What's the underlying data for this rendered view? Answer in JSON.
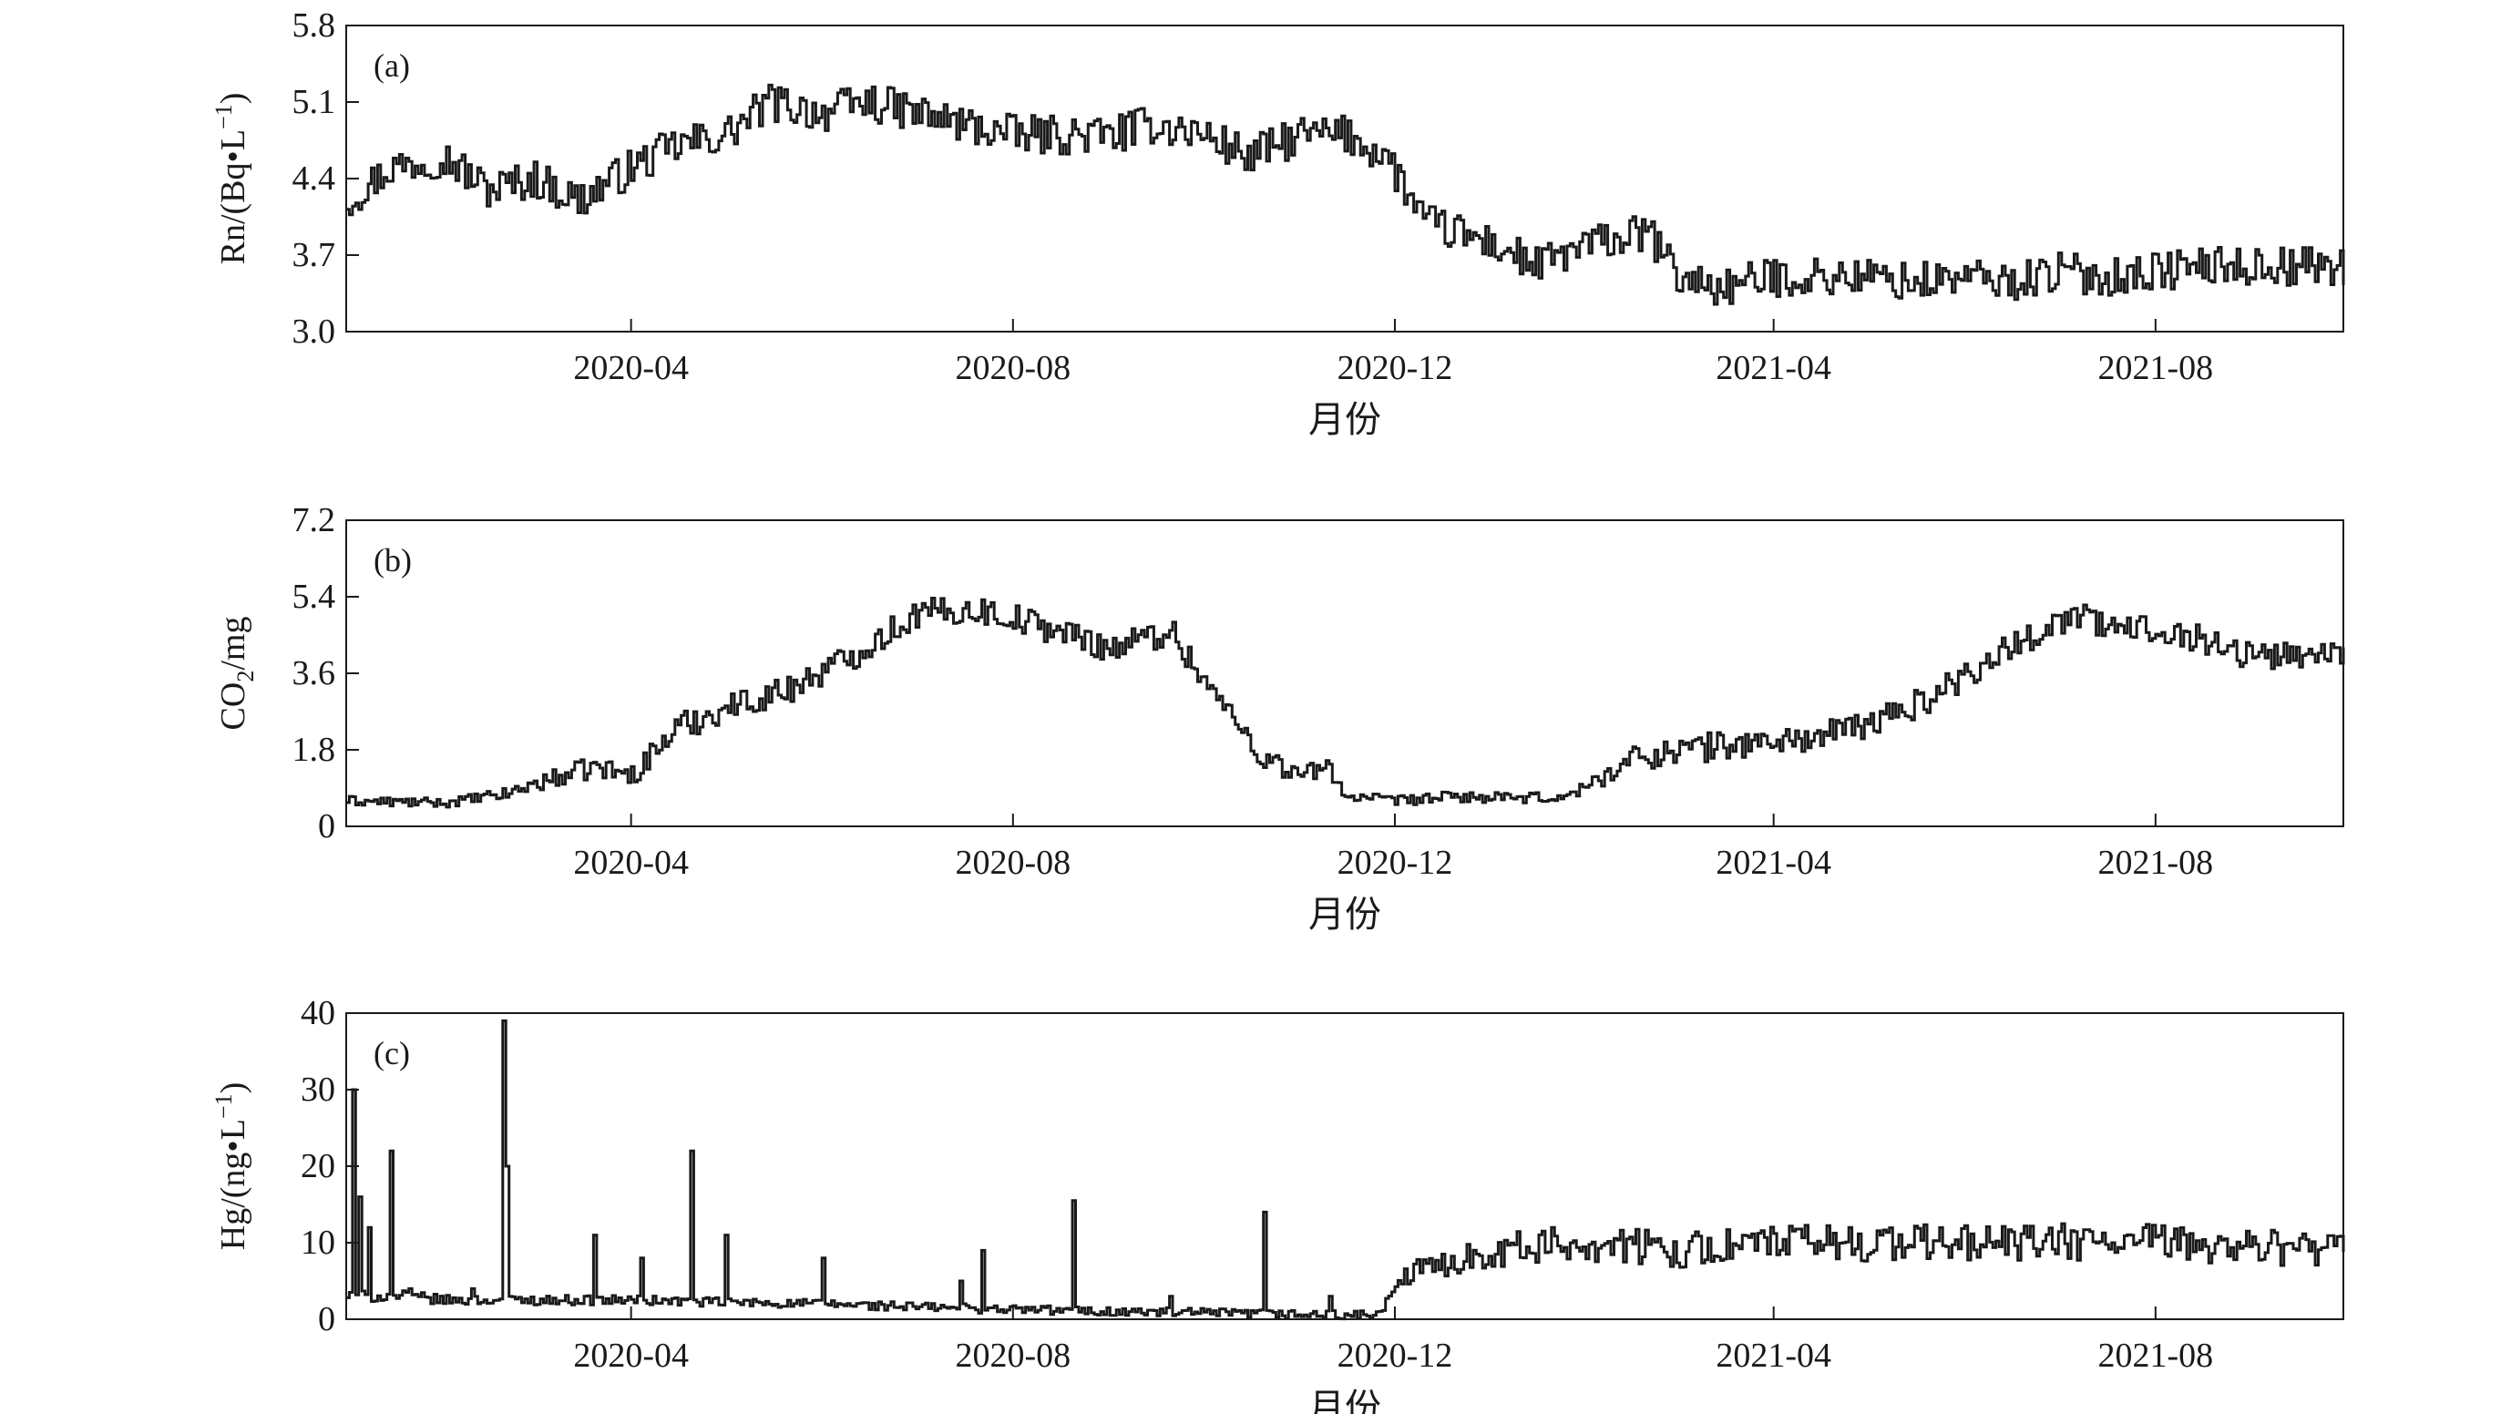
{
  "chart_data": [
    {
      "panel_label": "(a)",
      "type": "line",
      "ylabel": "Rn/(Bq•L",
      "ylabel_sup": "−1",
      "ylabel_end": ")",
      "xlabel": "月份",
      "ylim": [
        3.0,
        5.8
      ],
      "yticks": [
        "3.0",
        "3.7",
        "4.4",
        "5.1",
        "5.8"
      ],
      "xlim": [
        "2020-01-01",
        "2021-09-30"
      ],
      "xticks": [
        {
          "date": "2020-04-01",
          "label": "2020-04"
        },
        {
          "date": "2020-08-01",
          "label": "2020-08"
        },
        {
          "date": "2020-12-01",
          "label": "2020-12"
        },
        {
          "date": "2021-04-01",
          "label": "2021-04"
        },
        {
          "date": "2021-08-01",
          "label": "2021-08"
        }
      ],
      "series": [
        {
          "points": [
            [
              "2020-01-01",
              4.2
            ],
            [
              "2020-01-15",
              4.5
            ],
            [
              "2020-02-01",
              4.6
            ],
            [
              "2020-02-15",
              4.3
            ],
            [
              "2020-03-01",
              4.4
            ],
            [
              "2020-03-15",
              4.2
            ],
            [
              "2020-04-01",
              4.5
            ],
            [
              "2020-04-15",
              4.7
            ],
            [
              "2020-05-01",
              4.8
            ],
            [
              "2020-05-15",
              5.1
            ],
            [
              "2020-06-01",
              5.0
            ],
            [
              "2020-06-15",
              5.1
            ],
            [
              "2020-07-01",
              5.0
            ],
            [
              "2020-07-15",
              4.9
            ],
            [
              "2020-08-01",
              4.8
            ],
            [
              "2020-08-15",
              4.8
            ],
            [
              "2020-09-01",
              4.8
            ],
            [
              "2020-09-15",
              4.9
            ],
            [
              "2020-10-01",
              4.8
            ],
            [
              "2020-10-15",
              4.6
            ],
            [
              "2020-11-01",
              4.8
            ],
            [
              "2020-11-15",
              4.8
            ],
            [
              "2020-11-28",
              4.6
            ],
            [
              "2020-12-10",
              4.0
            ],
            [
              "2021-01-01",
              3.8
            ],
            [
              "2021-01-15",
              3.6
            ],
            [
              "2021-02-01",
              3.8
            ],
            [
              "2021-02-20",
              3.9
            ],
            [
              "2021-03-01",
              3.5
            ],
            [
              "2021-03-15",
              3.4
            ],
            [
              "2021-04-01",
              3.5
            ],
            [
              "2021-04-15",
              3.5
            ],
            [
              "2021-05-01",
              3.5
            ],
            [
              "2021-05-15",
              3.45
            ],
            [
              "2021-06-01",
              3.5
            ],
            [
              "2021-06-15",
              3.45
            ],
            [
              "2021-07-01",
              3.55
            ],
            [
              "2021-07-15",
              3.5
            ],
            [
              "2021-08-01",
              3.55
            ],
            [
              "2021-08-15",
              3.6
            ],
            [
              "2021-09-01",
              3.6
            ],
            [
              "2021-09-30",
              3.6
            ]
          ],
          "noise": 0.18
        }
      ]
    },
    {
      "panel_label": "(b)",
      "type": "line",
      "ylabel": "CO",
      "ylabel_sub": "2",
      "ylabel_end": "/mg",
      "xlabel": "月份",
      "ylim": [
        0,
        7.2
      ],
      "yticks": [
        "0",
        "1.8",
        "3.6",
        "5.4",
        "7.2"
      ],
      "xlim": [
        "2020-01-01",
        "2021-09-30"
      ],
      "xticks": [
        {
          "date": "2020-04-01",
          "label": "2020-04"
        },
        {
          "date": "2020-08-01",
          "label": "2020-08"
        },
        {
          "date": "2020-12-01",
          "label": "2020-12"
        },
        {
          "date": "2021-04-01",
          "label": "2021-04"
        },
        {
          "date": "2021-08-01",
          "label": "2021-08"
        }
      ],
      "series": [
        {
          "points": [
            [
              "2020-01-01",
              0.6
            ],
            [
              "2020-02-01",
              0.55
            ],
            [
              "2020-02-20",
              0.75
            ],
            [
              "2020-03-01",
              1.0
            ],
            [
              "2020-03-20",
              1.4
            ],
            [
              "2020-04-01",
              1.2
            ],
            [
              "2020-04-15",
              2.3
            ],
            [
              "2020-05-01",
              2.8
            ],
            [
              "2020-05-20",
              3.2
            ],
            [
              "2020-06-10",
              4.0
            ],
            [
              "2020-07-01",
              5.0
            ],
            [
              "2020-07-20",
              5.1
            ],
            [
              "2020-08-01",
              4.9
            ],
            [
              "2020-08-15",
              4.6
            ],
            [
              "2020-09-01",
              4.2
            ],
            [
              "2020-09-20",
              4.6
            ],
            [
              "2020-10-05",
              3.0
            ],
            [
              "2020-10-20",
              1.6
            ],
            [
              "2020-11-01",
              1.2
            ],
            [
              "2020-11-10",
              1.4
            ],
            [
              "2020-11-15",
              0.7
            ],
            [
              "2020-12-01",
              0.6
            ],
            [
              "2020-12-20",
              0.7
            ],
            [
              "2021-01-10",
              0.65
            ],
            [
              "2021-01-25",
              0.7
            ],
            [
              "2021-02-15",
              1.6
            ],
            [
              "2021-03-01",
              1.8
            ],
            [
              "2021-03-15",
              1.9
            ],
            [
              "2021-04-01",
              2.0
            ],
            [
              "2021-04-15",
              2.1
            ],
            [
              "2021-05-01",
              2.4
            ],
            [
              "2021-05-20",
              3.0
            ],
            [
              "2021-06-10",
              4.0
            ],
            [
              "2021-06-25",
              4.6
            ],
            [
              "2021-07-05",
              5.0
            ],
            [
              "2021-07-20",
              4.6
            ],
            [
              "2021-08-01",
              4.7
            ],
            [
              "2021-08-15",
              4.4
            ],
            [
              "2021-09-01",
              4.0
            ],
            [
              "2021-09-30",
              4.1
            ]
          ],
          "noise": 0.35
        }
      ]
    },
    {
      "panel_label": "(c)",
      "type": "line",
      "ylabel": "Hg/(ng•L",
      "ylabel_sup": "−1",
      "ylabel_end": ")",
      "xlabel": "月份",
      "ylim": [
        0,
        40
      ],
      "yticks": [
        "0",
        "10",
        "20",
        "30",
        "40"
      ],
      "xlim": [
        "2020-01-01",
        "2021-09-30"
      ],
      "xticks": [
        {
          "date": "2020-04-01",
          "label": "2020-04"
        },
        {
          "date": "2020-08-01",
          "label": "2020-08"
        },
        {
          "date": "2020-12-01",
          "label": "2020-12"
        },
        {
          "date": "2021-04-01",
          "label": "2021-04"
        },
        {
          "date": "2021-08-01",
          "label": "2021-08"
        }
      ],
      "series": [
        {
          "points": [
            [
              "2020-01-01",
              3
            ],
            [
              "2020-01-20",
              3
            ],
            [
              "2020-02-01",
              2.5
            ],
            [
              "2020-03-01",
              2.5
            ],
            [
              "2020-04-01",
              2.5
            ],
            [
              "2020-05-01",
              2.2
            ],
            [
              "2020-06-01",
              2.0
            ],
            [
              "2020-07-01",
              1.6
            ],
            [
              "2020-08-01",
              1.3
            ],
            [
              "2020-09-01",
              1.0
            ],
            [
              "2020-10-01",
              0.8
            ],
            [
              "2020-11-01",
              0.6
            ],
            [
              "2020-11-25",
              0.5
            ],
            [
              "2020-12-05",
              6
            ],
            [
              "2021-01-01",
              9
            ],
            [
              "2021-02-01",
              10
            ],
            [
              "2021-03-01",
              9
            ],
            [
              "2021-04-01",
              10
            ],
            [
              "2021-05-01",
              10
            ],
            [
              "2021-06-01",
              10
            ],
            [
              "2021-07-01",
              10
            ],
            [
              "2021-08-01",
              10
            ],
            [
              "2021-09-30",
              9
            ]
          ],
          "noise": 2.5,
          "spikes": [
            [
              "2020-01-03",
              30
            ],
            [
              "2020-01-05",
              16
            ],
            [
              "2020-01-08",
              12
            ],
            [
              "2020-01-15",
              22
            ],
            [
              "2020-01-21",
              4
            ],
            [
              "2020-02-10",
              4
            ],
            [
              "2020-02-20",
              39
            ],
            [
              "2020-02-21",
              20
            ],
            [
              "2020-03-20",
              11
            ],
            [
              "2020-04-04",
              8
            ],
            [
              "2020-04-20",
              22
            ],
            [
              "2020-05-01",
              11
            ],
            [
              "2020-06-01",
              8
            ],
            [
              "2020-07-15",
              5
            ],
            [
              "2020-07-22",
              9
            ],
            [
              "2020-08-20",
              15.5
            ],
            [
              "2020-09-20",
              3
            ],
            [
              "2020-10-20",
              14
            ],
            [
              "2020-11-10",
              3
            ]
          ]
        }
      ]
    }
  ]
}
